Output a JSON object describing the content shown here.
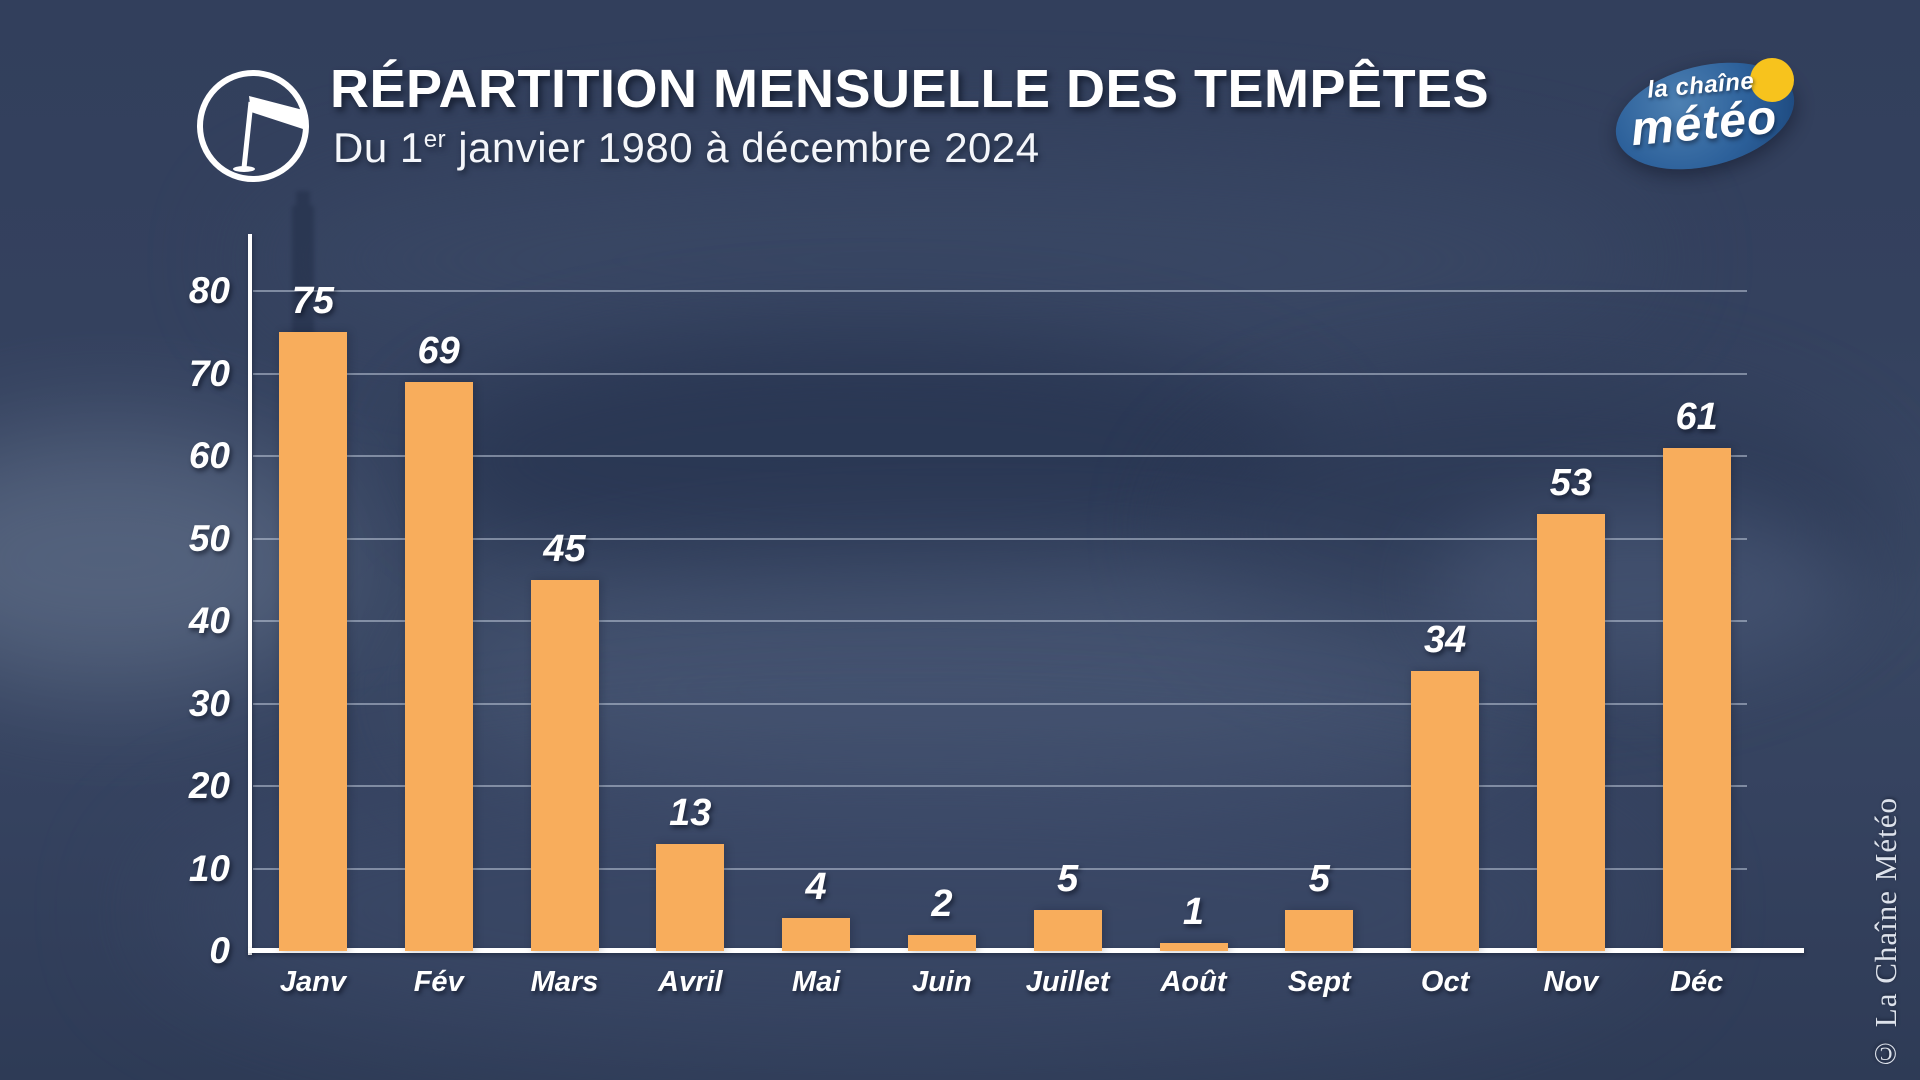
{
  "header": {
    "title": "RÉPARTITION MENSUELLE DES TEMPÊTES",
    "subtitle": {
      "prefix": "Du 1",
      "sup": "er",
      "rest": " janvier 1980 à décembre 2024"
    }
  },
  "logo": {
    "line1": "la chaîne",
    "line2": "météo",
    "sun_color": "#f7c31d",
    "ellipse_color": "#2c609a"
  },
  "watermark": "© La Chaîne Météo",
  "chart_data": {
    "type": "bar",
    "title": "Répartition mensuelle des tempêtes",
    "subtitle": "Du 1er janvier 1980 à décembre 2024",
    "categories": [
      "Janv",
      "Fév",
      "Mars",
      "Avril",
      "Mai",
      "Juin",
      "Juillet",
      "Août",
      "Sept",
      "Oct",
      "Nov",
      "Déc"
    ],
    "values": [
      75,
      69,
      45,
      13,
      4,
      2,
      5,
      1,
      5,
      34,
      53,
      61
    ],
    "xlabel": "",
    "ylabel": "",
    "ylim": [
      0,
      80
    ],
    "yticks": [
      0,
      10,
      20,
      30,
      40,
      50,
      60,
      70,
      80
    ],
    "grid": true,
    "legend": "none",
    "bar_color": "#f8ad5c",
    "axis_color": "#ffffff",
    "grid_color": "#cad3e3",
    "label_color": "#ffffff"
  }
}
